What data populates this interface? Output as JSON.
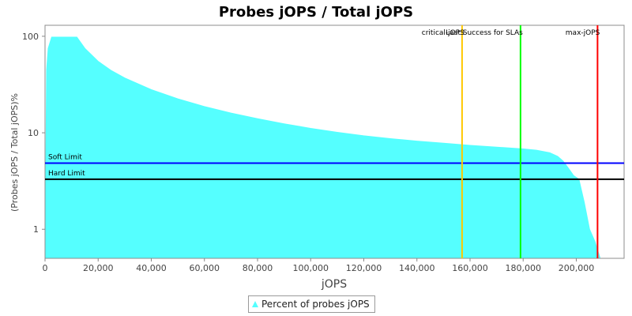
{
  "chart_data": {
    "type": "area",
    "title": "Probes jOPS / Total jOPS",
    "xlabel": "jOPS",
    "ylabel": "(Probes jOPS / Total jOPS)%",
    "yscale": "log",
    "xlim": [
      0,
      218000
    ],
    "ylim": [
      0.5,
      130
    ],
    "x_ticks": [
      0,
      20000,
      40000,
      60000,
      80000,
      100000,
      120000,
      140000,
      160000,
      180000,
      200000
    ],
    "x_tick_labels": [
      "0",
      "20,000",
      "40,000",
      "60,000",
      "80,000",
      "100,000",
      "120,000",
      "140,000",
      "160,000",
      "180,000",
      "200,000"
    ],
    "y_ticks": [
      1,
      10,
      100
    ],
    "y_tick_labels": [
      "1",
      "10",
      "100"
    ],
    "grid": false,
    "legend_position": "bottom",
    "colors": {
      "area": "#55ffff",
      "area_edge": "#8c8c8c"
    },
    "series": [
      {
        "name": "Percent of probes jOPS",
        "x": [
          0,
          600,
          1200,
          2500,
          12000,
          15000,
          20000,
          25000,
          30000,
          40000,
          50000,
          60000,
          70000,
          80000,
          90000,
          100000,
          110000,
          120000,
          130000,
          140000,
          150000,
          160000,
          170000,
          180000,
          185000,
          190000,
          193000,
          195000,
          197000,
          199000,
          201000,
          203000,
          205000,
          207000,
          209000,
          212000,
          216000
        ],
        "y": [
          0,
          45,
          75,
          98,
          98,
          75,
          55,
          44,
          37,
          28,
          22.5,
          18.7,
          16,
          14,
          12.4,
          11.1,
          10.1,
          9.3,
          8.7,
          8.2,
          7.8,
          7.4,
          7.1,
          6.8,
          6.6,
          6.2,
          5.7,
          5.1,
          4.3,
          3.6,
          3.3,
          1.9,
          1.0,
          0.75,
          0.5,
          0.5,
          0.5
        ]
      }
    ],
    "horizontal_lines": [
      {
        "label": "Soft Limit",
        "y": 4.85,
        "color": "#0000ff"
      },
      {
        "label": "Hard Limit",
        "y": 3.3,
        "color": "#000000"
      }
    ],
    "vertical_lines": [
      {
        "label": "critical-jOPS",
        "x": 157000,
        "color": "#ffc800"
      },
      {
        "label": "Last Success for SLAs",
        "x": 179000,
        "color": "#00ff00"
      },
      {
        "label": "max-jOPS",
        "x": 208000,
        "color": "#ff0000"
      }
    ]
  }
}
